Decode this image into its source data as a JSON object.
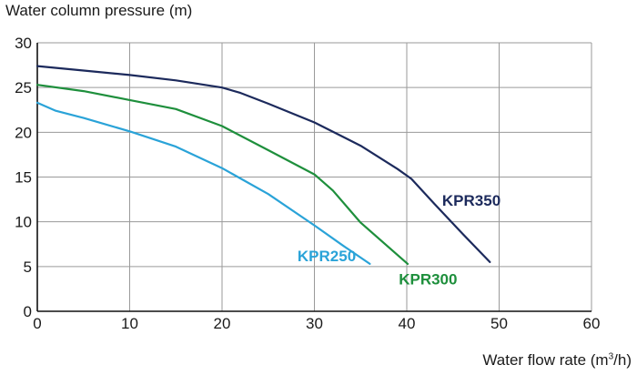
{
  "chart_data": {
    "type": "line",
    "ylabel": "Water column pressure (m)",
    "xlabel": {
      "prefix": "Water flow rate (m",
      "sup": "3",
      "suffix": "/h)"
    },
    "xlim": [
      0,
      60
    ],
    "ylim": [
      0,
      30
    ],
    "xticks": [
      0,
      10,
      20,
      30,
      40,
      50,
      60
    ],
    "yticks": [
      0,
      5,
      10,
      15,
      20,
      25,
      30
    ],
    "grid": true,
    "series": [
      {
        "name": "KPR250",
        "color": "#2aa3d8",
        "points": [
          [
            0,
            23.3
          ],
          [
            2,
            22.4
          ],
          [
            5,
            21.6
          ],
          [
            10,
            20.1
          ],
          [
            15,
            18.4
          ],
          [
            20,
            16.0
          ],
          [
            25,
            13.1
          ],
          [
            30,
            9.6
          ],
          [
            33,
            7.4
          ],
          [
            36,
            5.3
          ]
        ]
      },
      {
        "name": "KPR300",
        "color": "#1e8f3c",
        "points": [
          [
            0,
            25.3
          ],
          [
            5,
            24.6
          ],
          [
            10,
            23.6
          ],
          [
            15,
            22.6
          ],
          [
            20,
            20.7
          ],
          [
            25,
            18.0
          ],
          [
            30,
            15.3
          ],
          [
            32,
            13.5
          ],
          [
            35,
            9.9
          ],
          [
            40.1,
            5.3
          ]
        ]
      },
      {
        "name": "KPR350",
        "color": "#1c2a5c",
        "points": [
          [
            0,
            27.4
          ],
          [
            5,
            26.9
          ],
          [
            10,
            26.4
          ],
          [
            15,
            25.8
          ],
          [
            20,
            25.0
          ],
          [
            22,
            24.4
          ],
          [
            25,
            23.2
          ],
          [
            30,
            21.1
          ],
          [
            35,
            18.5
          ],
          [
            39,
            15.9
          ],
          [
            40.5,
            14.8
          ],
          [
            43,
            12.0
          ],
          [
            46,
            8.7
          ],
          [
            49,
            5.5
          ]
        ]
      }
    ]
  }
}
